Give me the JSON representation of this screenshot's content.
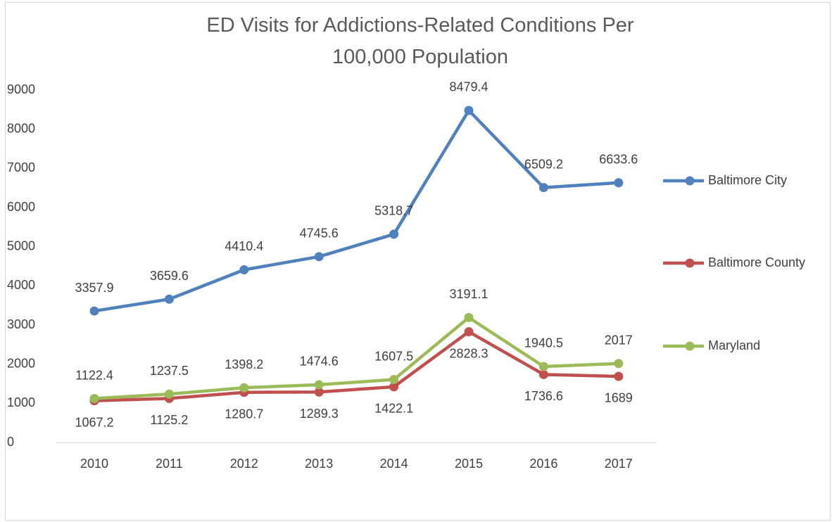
{
  "chart_data": {
    "type": "line",
    "title": "ED Visits for Addictions-Related Conditions Per 100,000 Population",
    "categories": [
      "2010",
      "2011",
      "2012",
      "2013",
      "2014",
      "2015",
      "2016",
      "2017"
    ],
    "series": [
      {
        "name": "Baltimore City",
        "color": "#4f81bd",
        "values": [
          3357.9,
          3659.6,
          4410.4,
          4745.6,
          5318.7,
          8479.4,
          6509.2,
          6633.6
        ]
      },
      {
        "name": "Baltimore County",
        "color": "#c0504d",
        "values": [
          1067.2,
          1125.2,
          1280.7,
          1289.3,
          1422.1,
          2828.3,
          1736.6,
          1689
        ]
      },
      {
        "name": "Maryland",
        "color": "#9bbb59",
        "values": [
          1122.4,
          1237.5,
          1398.2,
          1474.6,
          1607.5,
          3191.1,
          1940.5,
          2017
        ]
      }
    ],
    "ylim": [
      0,
      9000
    ],
    "yticks": [
      0,
      1000,
      2000,
      3000,
      4000,
      5000,
      6000,
      7000,
      8000,
      9000
    ],
    "legend": "right"
  }
}
